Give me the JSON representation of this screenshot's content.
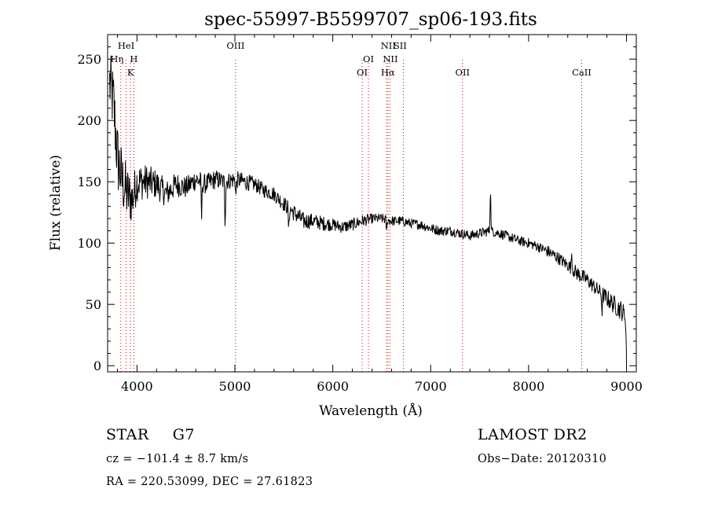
{
  "chart_data": {
    "type": "line",
    "title": "spec-55997-B5599707_sp06-193.fits",
    "xlabel": "Wavelength (Å)",
    "ylabel": "Flux (relative)",
    "xlim": [
      3700,
      9100
    ],
    "ylim": [
      -5,
      270
    ],
    "xticks": [
      4000,
      5000,
      6000,
      7000,
      8000,
      9000
    ],
    "yticks": [
      0,
      50,
      100,
      150,
      200,
      250
    ],
    "grid": false,
    "line_color": "#000000",
    "marker_color": "#cc0000",
    "series": [
      {
        "x": [
          3720,
          3760,
          3800,
          3850,
          3900,
          3950,
          4000,
          4100,
          4200,
          4300,
          4400,
          4500,
          4600,
          4700,
          4800,
          4900,
          5000,
          5100,
          5200,
          5300,
          5400,
          5500,
          5600,
          5700,
          5800,
          5900,
          6000,
          6100,
          6200,
          6300,
          6400,
          6500,
          6600,
          6700,
          6800,
          6900,
          7000,
          7100,
          7200,
          7300,
          7400,
          7500,
          7600,
          7700,
          7800,
          7900,
          8000,
          8100,
          8200,
          8300,
          8400,
          8500,
          8600,
          8700,
          8800,
          8900,
          8950,
          8990,
          9000
        ],
        "y": [
          230,
          215,
          170,
          150,
          140,
          135,
          150,
          150,
          148,
          140,
          148,
          145,
          152,
          148,
          152,
          150,
          152,
          150,
          148,
          143,
          140,
          132,
          125,
          118,
          118,
          116,
          115,
          113,
          115,
          118,
          120,
          120,
          118,
          118,
          116,
          115,
          112,
          110,
          110,
          108,
          106,
          108,
          110,
          108,
          105,
          102,
          100,
          97,
          93,
          88,
          82,
          75,
          70,
          62,
          55,
          48,
          45,
          40,
          5
        ],
        "noise_amplitude": [
          28,
          28,
          30,
          26,
          24,
          20,
          16,
          14,
          12,
          11,
          10,
          9,
          9,
          8,
          8,
          7,
          7,
          7,
          6,
          6,
          6,
          6,
          7,
          7,
          6,
          6,
          5,
          5,
          5,
          5,
          4,
          4,
          4,
          4,
          4,
          4,
          4,
          4,
          4,
          4,
          4,
          4,
          4,
          4,
          4,
          4,
          4,
          4,
          5,
          5,
          5,
          6,
          6,
          6,
          7,
          8,
          8,
          8,
          4
        ]
      }
    ],
    "spikes": [
      {
        "x": 4660,
        "delta": -30
      },
      {
        "x": 4900,
        "delta": -35
      },
      {
        "x": 5010,
        "delta": -15
      },
      {
        "x": 5550,
        "delta": -20
      },
      {
        "x": 6550,
        "delta": -10
      },
      {
        "x": 7610,
        "delta": 38
      },
      {
        "x": 8440,
        "delta": 14
      },
      {
        "x": 8750,
        "delta": -15
      }
    ],
    "annotations": [
      {
        "label": "HeI",
        "x": 3889,
        "row": 1,
        "dx": 0
      },
      {
        "label": "Hη",
        "x": 3835,
        "row": 2,
        "dx": -5
      },
      {
        "label": "H",
        "x": 3968,
        "row": 2,
        "dx": 0
      },
      {
        "label": "K",
        "x": 3934,
        "row": 3,
        "dx": 0
      },
      {
        "label": "OIII",
        "x": 5007,
        "row": 1,
        "dx": 0
      },
      {
        "label": "OI",
        "x": 6364,
        "row": 2,
        "dx": 0
      },
      {
        "label": "OI",
        "x": 6300,
        "row": 3,
        "dx": 0
      },
      {
        "label": "NII",
        "x": 6583,
        "row": 1,
        "dx": -2
      },
      {
        "label": "SII",
        "x": 6720,
        "row": 1,
        "dx": -4
      },
      {
        "label": "NII",
        "x": 6548,
        "row": 2,
        "dx": 5
      },
      {
        "label": "Hα",
        "x": 6563,
        "row": 3,
        "dx": 0
      },
      {
        "label": "OII",
        "x": 7325,
        "row": 3,
        "dx": 0
      },
      {
        "label": "CaII",
        "x": 8542,
        "row": 3,
        "dx": 0
      }
    ],
    "line_markers": [
      3835,
      3889,
      3934,
      3968,
      5007,
      6300,
      6364,
      6548,
      6563,
      6583,
      6720,
      7325,
      8542
    ]
  },
  "info": {
    "object_class": "STAR",
    "subclass": "G7",
    "survey": "LAMOST DR2",
    "cz": "cz = −101.4 ± 8.7 km/s",
    "obs_date": "Obs−Date: 20120310",
    "coords": "RA = 220.53099, DEC =  27.61823"
  }
}
